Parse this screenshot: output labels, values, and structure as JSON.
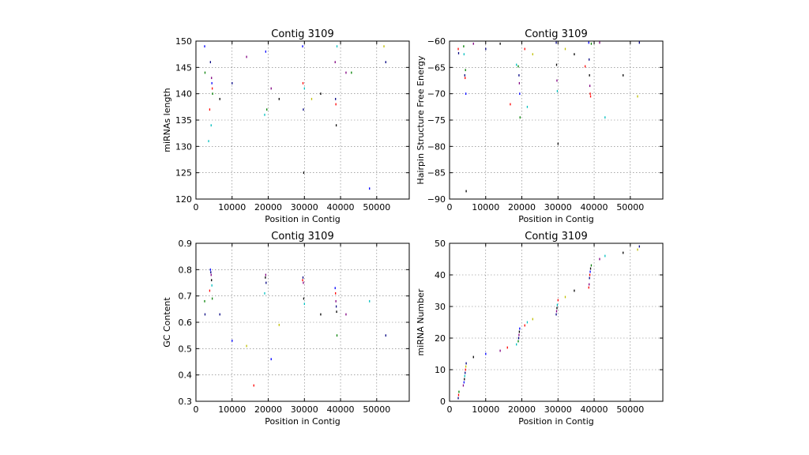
{
  "chart_data": [
    {
      "type": "scatter",
      "title": "Contig 3109",
      "xlabel": "Position in Contig",
      "ylabel": "miRNAs length",
      "xlim": [
        0,
        59000
      ],
      "ylim": [
        120,
        150
      ],
      "xticks": [
        0,
        10000,
        20000,
        30000,
        40000,
        50000
      ],
      "yticks": [
        120,
        125,
        130,
        135,
        140,
        145,
        150
      ],
      "grid": true,
      "points": [
        {
          "x": 2400,
          "y": 149,
          "color": "#0000ff"
        },
        {
          "x": 2500,
          "y": 144,
          "color": "#008000"
        },
        {
          "x": 3500,
          "y": 131,
          "color": "#00bfbf"
        },
        {
          "x": 3800,
          "y": 137,
          "color": "#ff0000"
        },
        {
          "x": 4000,
          "y": 146,
          "color": "#000080"
        },
        {
          "x": 4200,
          "y": 134,
          "color": "#00bfbf"
        },
        {
          "x": 4300,
          "y": 143,
          "color": "#800080"
        },
        {
          "x": 4400,
          "y": 142,
          "color": "#0000ff"
        },
        {
          "x": 4500,
          "y": 141,
          "color": "#ff0000"
        },
        {
          "x": 4600,
          "y": 140,
          "color": "#008000"
        },
        {
          "x": 6600,
          "y": 139,
          "color": "#000000"
        },
        {
          "x": 10000,
          "y": 142,
          "color": "#000080"
        },
        {
          "x": 14000,
          "y": 147,
          "color": "#800080"
        },
        {
          "x": 19000,
          "y": 136,
          "color": "#00bfbf"
        },
        {
          "x": 19300,
          "y": 148,
          "color": "#0000ff"
        },
        {
          "x": 19600,
          "y": 137,
          "color": "#008000"
        },
        {
          "x": 20800,
          "y": 141,
          "color": "#800080"
        },
        {
          "x": 23000,
          "y": 139,
          "color": "#000000"
        },
        {
          "x": 29500,
          "y": 149,
          "color": "#0000ff"
        },
        {
          "x": 29600,
          "y": 142,
          "color": "#ff0000"
        },
        {
          "x": 29700,
          "y": 137,
          "color": "#000080"
        },
        {
          "x": 29800,
          "y": 125,
          "color": "#000000"
        },
        {
          "x": 30000,
          "y": 141,
          "color": "#00bfbf"
        },
        {
          "x": 32000,
          "y": 139,
          "color": "#bfbf00"
        },
        {
          "x": 34500,
          "y": 140,
          "color": "#000000"
        },
        {
          "x": 38500,
          "y": 146,
          "color": "#800080"
        },
        {
          "x": 38600,
          "y": 139,
          "color": "#000080"
        },
        {
          "x": 38700,
          "y": 138,
          "color": "#ff0000"
        },
        {
          "x": 38800,
          "y": 134,
          "color": "#000000"
        },
        {
          "x": 39000,
          "y": 149,
          "color": "#00bfbf"
        },
        {
          "x": 41500,
          "y": 144,
          "color": "#800080"
        },
        {
          "x": 43000,
          "y": 144,
          "color": "#008000"
        },
        {
          "x": 48000,
          "y": 122,
          "color": "#0000ff"
        },
        {
          "x": 52000,
          "y": 149,
          "color": "#bfbf00"
        },
        {
          "x": 52500,
          "y": 146,
          "color": "#000080"
        }
      ]
    },
    {
      "type": "scatter",
      "title": "Contig 3109",
      "xlabel": "Position in Contig",
      "ylabel": "Hairpin Structure Free Energy",
      "xlim": [
        0,
        59000
      ],
      "ylim": [
        -90,
        -60
      ],
      "xticks": [
        0,
        10000,
        20000,
        30000,
        40000,
        50000
      ],
      "yticks": [
        -90,
        -85,
        -80,
        -75,
        -70,
        -65,
        -60
      ],
      "grid": true,
      "points": [
        {
          "x": 2400,
          "y": -61.5,
          "color": "#ff0000"
        },
        {
          "x": 2500,
          "y": -62.3,
          "color": "#000080"
        },
        {
          "x": 3900,
          "y": -61.0,
          "color": "#008000"
        },
        {
          "x": 4000,
          "y": -62.5,
          "color": "#00bfbf"
        },
        {
          "x": 4200,
          "y": -66.5,
          "color": "#000080"
        },
        {
          "x": 4300,
          "y": -67.0,
          "color": "#ff0000"
        },
        {
          "x": 4400,
          "y": -65.5,
          "color": "#008000"
        },
        {
          "x": 4500,
          "y": -70.0,
          "color": "#0000ff"
        },
        {
          "x": 4600,
          "y": -88.5,
          "color": "#000000"
        },
        {
          "x": 6600,
          "y": -60.5,
          "color": "#800080"
        },
        {
          "x": 10000,
          "y": -61.5,
          "color": "#000080"
        },
        {
          "x": 14000,
          "y": -60.5,
          "color": "#000000"
        },
        {
          "x": 16800,
          "y": -72.0,
          "color": "#ff0000"
        },
        {
          "x": 18500,
          "y": -64.5,
          "color": "#00bfbf"
        },
        {
          "x": 19000,
          "y": -64.8,
          "color": "#008000"
        },
        {
          "x": 19200,
          "y": -66.5,
          "color": "#000080"
        },
        {
          "x": 19300,
          "y": -68.0,
          "color": "#800080"
        },
        {
          "x": 19400,
          "y": -70.0,
          "color": "#0000ff"
        },
        {
          "x": 19500,
          "y": -74.5,
          "color": "#008000"
        },
        {
          "x": 20800,
          "y": -61.5,
          "color": "#ff0000"
        },
        {
          "x": 21500,
          "y": -72.5,
          "color": "#00bfbf"
        },
        {
          "x": 23000,
          "y": -62.5,
          "color": "#bfbf00"
        },
        {
          "x": 29500,
          "y": -60.3,
          "color": "#000080"
        },
        {
          "x": 29600,
          "y": -64.5,
          "color": "#000000"
        },
        {
          "x": 29700,
          "y": -67.5,
          "color": "#800080"
        },
        {
          "x": 29800,
          "y": -69.5,
          "color": "#00bfbf"
        },
        {
          "x": 30000,
          "y": -79.5,
          "color": "#000000"
        },
        {
          "x": 32000,
          "y": -61.5,
          "color": "#bfbf00"
        },
        {
          "x": 34500,
          "y": -62.5,
          "color": "#000000"
        },
        {
          "x": 37500,
          "y": -64.8,
          "color": "#ff0000"
        },
        {
          "x": 38500,
          "y": -60.3,
          "color": "#0000ff"
        },
        {
          "x": 38600,
          "y": -63.5,
          "color": "#000080"
        },
        {
          "x": 38700,
          "y": -66.5,
          "color": "#000000"
        },
        {
          "x": 38800,
          "y": -68.5,
          "color": "#800080"
        },
        {
          "x": 38900,
          "y": -70.0,
          "color": "#ff0000"
        },
        {
          "x": 39000,
          "y": -70.5,
          "color": "#ff0000"
        },
        {
          "x": 39200,
          "y": -60.5,
          "color": "#008000"
        },
        {
          "x": 41500,
          "y": -60.3,
          "color": "#800080"
        },
        {
          "x": 43000,
          "y": -74.5,
          "color": "#00bfbf"
        },
        {
          "x": 48000,
          "y": -66.5,
          "color": "#000000"
        },
        {
          "x": 52000,
          "y": -70.5,
          "color": "#bfbf00"
        },
        {
          "x": 52500,
          "y": -60.3,
          "color": "#000080"
        }
      ]
    },
    {
      "type": "scatter",
      "title": "Contig 3109",
      "xlabel": "Position in Contig",
      "ylabel": "GC Content",
      "xlim": [
        0,
        59000
      ],
      "ylim": [
        0.3,
        0.9
      ],
      "xticks": [
        0,
        10000,
        20000,
        30000,
        40000,
        50000
      ],
      "yticks": [
        0.3,
        0.4,
        0.5,
        0.6,
        0.7,
        0.8,
        0.9
      ],
      "grid": true,
      "points": [
        {
          "x": 2400,
          "y": 0.68,
          "color": "#008000"
        },
        {
          "x": 2500,
          "y": 0.63,
          "color": "#000080"
        },
        {
          "x": 3800,
          "y": 0.72,
          "color": "#ff0000"
        },
        {
          "x": 4000,
          "y": 0.8,
          "color": "#0000ff"
        },
        {
          "x": 4100,
          "y": 0.79,
          "color": "#000080"
        },
        {
          "x": 4200,
          "y": 0.78,
          "color": "#800080"
        },
        {
          "x": 4300,
          "y": 0.76,
          "color": "#000000"
        },
        {
          "x": 4400,
          "y": 0.74,
          "color": "#00bfbf"
        },
        {
          "x": 4500,
          "y": 0.69,
          "color": "#008000"
        },
        {
          "x": 6600,
          "y": 0.63,
          "color": "#000080"
        },
        {
          "x": 10000,
          "y": 0.53,
          "color": "#0000ff"
        },
        {
          "x": 14000,
          "y": 0.51,
          "color": "#bfbf00"
        },
        {
          "x": 16000,
          "y": 0.36,
          "color": "#ff0000"
        },
        {
          "x": 19000,
          "y": 0.71,
          "color": "#00bfbf"
        },
        {
          "x": 19200,
          "y": 0.77,
          "color": "#000000"
        },
        {
          "x": 19300,
          "y": 0.78,
          "color": "#800080"
        },
        {
          "x": 19400,
          "y": 0.75,
          "color": "#000080"
        },
        {
          "x": 20800,
          "y": 0.46,
          "color": "#0000ff"
        },
        {
          "x": 23000,
          "y": 0.59,
          "color": "#bfbf00"
        },
        {
          "x": 29500,
          "y": 0.76,
          "color": "#ff0000"
        },
        {
          "x": 29600,
          "y": 0.77,
          "color": "#000080"
        },
        {
          "x": 29700,
          "y": 0.75,
          "color": "#800080"
        },
        {
          "x": 29800,
          "y": 0.69,
          "color": "#000000"
        },
        {
          "x": 30000,
          "y": 0.67,
          "color": "#00bfbf"
        },
        {
          "x": 34500,
          "y": 0.63,
          "color": "#000000"
        },
        {
          "x": 38500,
          "y": 0.73,
          "color": "#0000ff"
        },
        {
          "x": 38600,
          "y": 0.71,
          "color": "#ff0000"
        },
        {
          "x": 38700,
          "y": 0.68,
          "color": "#800080"
        },
        {
          "x": 38800,
          "y": 0.66,
          "color": "#000080"
        },
        {
          "x": 38900,
          "y": 0.64,
          "color": "#000000"
        },
        {
          "x": 39000,
          "y": 0.55,
          "color": "#008000"
        },
        {
          "x": 41500,
          "y": 0.63,
          "color": "#800080"
        },
        {
          "x": 48000,
          "y": 0.68,
          "color": "#00bfbf"
        },
        {
          "x": 52500,
          "y": 0.55,
          "color": "#000080"
        }
      ]
    },
    {
      "type": "scatter",
      "title": "Contig 3109",
      "xlabel": "Position in Contig",
      "ylabel": "miRNA Number",
      "xlim": [
        0,
        59000
      ],
      "ylim": [
        0,
        50
      ],
      "xticks": [
        0,
        10000,
        20000,
        30000,
        40000,
        50000
      ],
      "yticks": [
        0,
        10,
        20,
        30,
        40,
        50
      ],
      "grid": true,
      "points": [
        {
          "x": 2400,
          "y": 1,
          "color": "#000080"
        },
        {
          "x": 2500,
          "y": 2,
          "color": "#ff0000"
        },
        {
          "x": 2600,
          "y": 3,
          "color": "#008000"
        },
        {
          "x": 3800,
          "y": 5,
          "color": "#800080"
        },
        {
          "x": 4000,
          "y": 6,
          "color": "#0000ff"
        },
        {
          "x": 4100,
          "y": 7,
          "color": "#000000"
        },
        {
          "x": 4200,
          "y": 8,
          "color": "#00bfbf"
        },
        {
          "x": 4300,
          "y": 9,
          "color": "#000080"
        },
        {
          "x": 4400,
          "y": 10,
          "color": "#ff0000"
        },
        {
          "x": 4500,
          "y": 11,
          "color": "#bfbf00"
        },
        {
          "x": 4600,
          "y": 12,
          "color": "#000080"
        },
        {
          "x": 6600,
          "y": 14,
          "color": "#000000"
        },
        {
          "x": 10000,
          "y": 15,
          "color": "#0000ff"
        },
        {
          "x": 14000,
          "y": 16,
          "color": "#800080"
        },
        {
          "x": 16000,
          "y": 17,
          "color": "#ff0000"
        },
        {
          "x": 18500,
          "y": 18,
          "color": "#00bfbf"
        },
        {
          "x": 19000,
          "y": 19,
          "color": "#008000"
        },
        {
          "x": 19100,
          "y": 20,
          "color": "#000080"
        },
        {
          "x": 19200,
          "y": 21,
          "color": "#800080"
        },
        {
          "x": 19300,
          "y": 22,
          "color": "#000000"
        },
        {
          "x": 19400,
          "y": 23,
          "color": "#0000ff"
        },
        {
          "x": 20800,
          "y": 24,
          "color": "#ff0000"
        },
        {
          "x": 21500,
          "y": 25,
          "color": "#00bfbf"
        },
        {
          "x": 23000,
          "y": 26,
          "color": "#bfbf00"
        },
        {
          "x": 29500,
          "y": 27.5,
          "color": "#000080"
        },
        {
          "x": 29600,
          "y": 28.5,
          "color": "#800080"
        },
        {
          "x": 29700,
          "y": 29.5,
          "color": "#000000"
        },
        {
          "x": 29800,
          "y": 30.5,
          "color": "#00bfbf"
        },
        {
          "x": 30000,
          "y": 32,
          "color": "#ff0000"
        },
        {
          "x": 32000,
          "y": 33,
          "color": "#bfbf00"
        },
        {
          "x": 34500,
          "y": 35,
          "color": "#000000"
        },
        {
          "x": 38500,
          "y": 36,
          "color": "#ff0000"
        },
        {
          "x": 38600,
          "y": 37,
          "color": "#800080"
        },
        {
          "x": 38700,
          "y": 39,
          "color": "#000080"
        },
        {
          "x": 38800,
          "y": 40,
          "color": "#ff0000"
        },
        {
          "x": 38900,
          "y": 41,
          "color": "#0000ff"
        },
        {
          "x": 39000,
          "y": 42,
          "color": "#000000"
        },
        {
          "x": 39200,
          "y": 43,
          "color": "#008000"
        },
        {
          "x": 41500,
          "y": 45,
          "color": "#800080"
        },
        {
          "x": 43000,
          "y": 46,
          "color": "#00bfbf"
        },
        {
          "x": 48000,
          "y": 47,
          "color": "#000000"
        },
        {
          "x": 52000,
          "y": 48,
          "color": "#bfbf00"
        },
        {
          "x": 52500,
          "y": 49,
          "color": "#000080"
        }
      ]
    }
  ]
}
